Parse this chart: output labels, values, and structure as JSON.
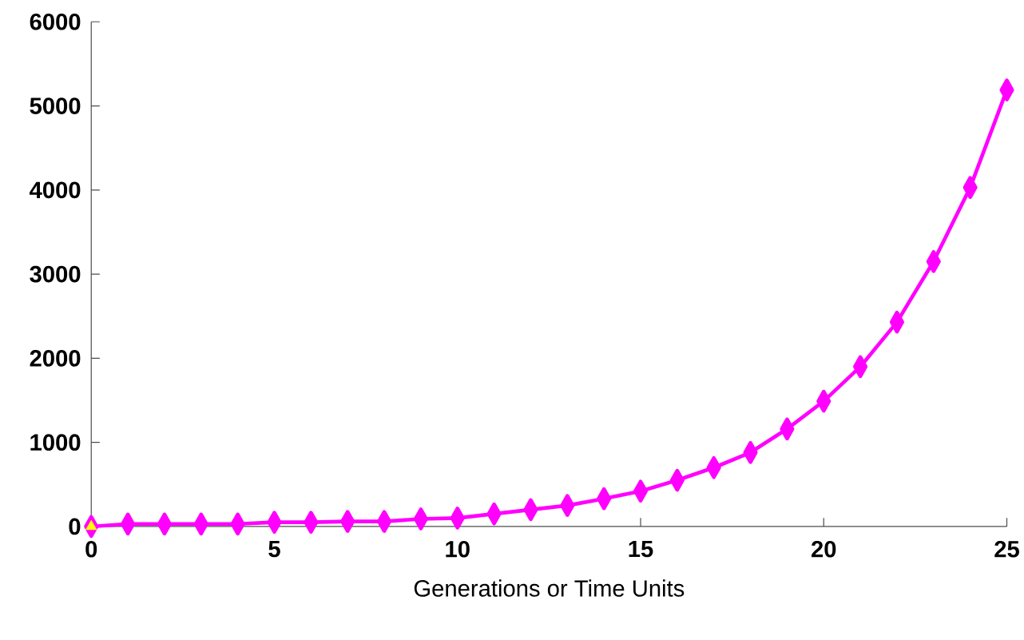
{
  "chart_data": {
    "type": "line",
    "xlabel": "Generations or Time Units",
    "x": [
      0,
      1,
      2,
      3,
      4,
      5,
      6,
      7,
      8,
      9,
      10,
      11,
      12,
      13,
      14,
      15,
      16,
      17,
      18,
      19,
      20,
      21,
      22,
      23,
      24,
      25
    ],
    "series": [
      {
        "color": "#ff00ff",
        "marker": "diamond",
        "values": [
          0,
          30,
          30,
          30,
          30,
          50,
          50,
          60,
          60,
          90,
          100,
          150,
          200,
          250,
          330,
          420,
          550,
          700,
          880,
          1160,
          1490,
          1900,
          2430,
          3150,
          4030,
          5190
        ]
      },
      {
        "type": "scatter",
        "color": "#ffff00",
        "marker": "triangle",
        "x": [
          0
        ],
        "values": [
          0
        ]
      }
    ],
    "xlim": [
      0,
      25
    ],
    "xticks": [
      0,
      5,
      10,
      15,
      20,
      25
    ],
    "ylim": [
      0,
      6000
    ],
    "yticks": [
      0,
      1000,
      2000,
      3000,
      4000,
      5000,
      6000
    ],
    "line_style": "solid"
  }
}
